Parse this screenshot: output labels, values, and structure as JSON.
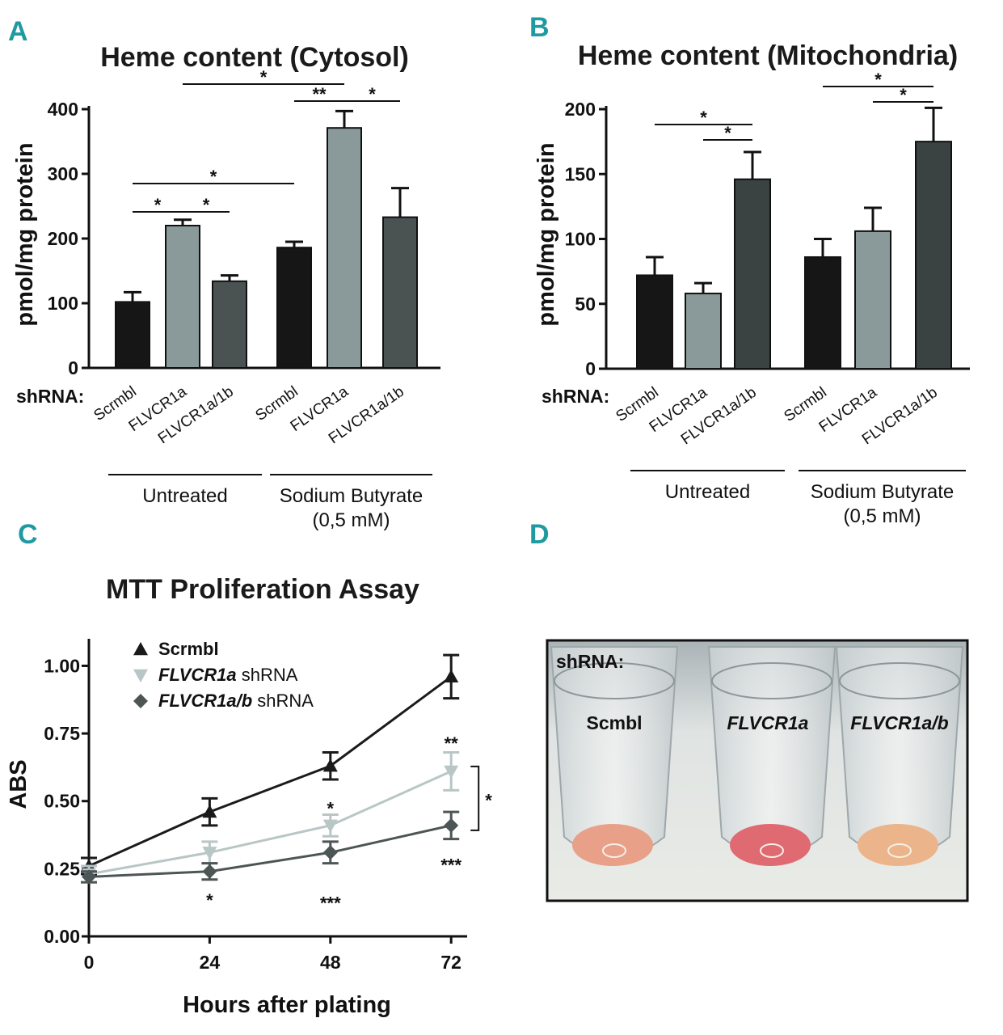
{
  "panel_labels": [
    "A",
    "B",
    "C",
    "D"
  ],
  "shrna_label": "shRNA:",
  "chart_data": [
    {
      "id": "A",
      "type": "bar",
      "title": "Heme content (Cytosol)",
      "ylabel": "pmol/mg protein",
      "ylim": [
        0,
        400
      ],
      "yticks": [
        0,
        100,
        200,
        300,
        400
      ],
      "categories": [
        "Scrmbl",
        "FLVCR1a",
        "FLVCR1a/1b",
        "Scrmbl",
        "FLVCR1a",
        "FLVCR1a/1b"
      ],
      "values": [
        102,
        220,
        134,
        186,
        371,
        233
      ],
      "errors": [
        15,
        9,
        9,
        9,
        26,
        45
      ],
      "bar_colors": [
        "#161616",
        "#8a9a9a",
        "#4a5252",
        "#161616",
        "#8a9a9a",
        "#4a5252"
      ],
      "groups": [
        {
          "label": "Untreated",
          "label2": "",
          "from": 0,
          "to": 2
        },
        {
          "label": "Sodium Butyrate",
          "label2": "(0,5 mM)",
          "from": 3,
          "to": 5
        }
      ],
      "significance": [
        {
          "from": 0,
          "to": 1,
          "label": "*"
        },
        {
          "from": 1,
          "to": 2,
          "label": "*"
        },
        {
          "from": 0,
          "to": 3,
          "label": "*"
        },
        {
          "from": 1,
          "to": 4,
          "label": "*"
        },
        {
          "from": 3,
          "to": 4,
          "label": "**"
        },
        {
          "from": 4,
          "to": 5,
          "label": "*"
        }
      ]
    },
    {
      "id": "B",
      "type": "bar",
      "title": "Heme content (Mitochondria)",
      "ylabel": "pmol/mg protein",
      "ylim": [
        0,
        200
      ],
      "yticks": [
        0,
        50,
        100,
        150,
        200
      ],
      "categories": [
        "Scrmbl",
        "FLVCR1a",
        "FLVCR1a/1b",
        "Scrmbl",
        "FLVCR1a",
        "FLVCR1a/1b"
      ],
      "values": [
        72,
        58,
        146,
        86,
        106,
        175
      ],
      "errors": [
        14,
        8,
        21,
        14,
        18,
        26
      ],
      "bar_colors": [
        "#161616",
        "#8a9a9a",
        "#3a4242",
        "#161616",
        "#8a9a9a",
        "#3a4242"
      ],
      "groups": [
        {
          "label": "Untreated",
          "label2": "",
          "from": 0,
          "to": 2
        },
        {
          "label": "Sodium Butyrate",
          "label2": "(0,5 mM)",
          "from": 3,
          "to": 5
        }
      ],
      "significance": [
        {
          "from": 0,
          "to": 2,
          "label": "*"
        },
        {
          "from": 1,
          "to": 2,
          "label": "*"
        },
        {
          "from": 3,
          "to": 5,
          "label": "*"
        },
        {
          "from": 4,
          "to": 5,
          "label": "*"
        }
      ]
    },
    {
      "id": "C",
      "type": "line",
      "title": "MTT Proliferation Assay",
      "xlabel": "Hours after plating",
      "ylabel": "ABS",
      "x": [
        0,
        24,
        48,
        72
      ],
      "xlim": [
        0,
        80
      ],
      "ylim": [
        0,
        1.1
      ],
      "xticks": [
        "0",
        "24",
        "48",
        "72"
      ],
      "yticks": [
        "0.00",
        "0.25",
        "0.50",
        "0.75",
        "1.00"
      ],
      "series": [
        {
          "name": "Scrmbl",
          "italic": "",
          "suffix": "",
          "marker": "triangle-up",
          "color": "#1a1a1a",
          "values": [
            0.26,
            0.46,
            0.63,
            0.96
          ],
          "errors": [
            0.03,
            0.05,
            0.05,
            0.08
          ]
        },
        {
          "name": "",
          "italic": "FLVCR1a",
          "suffix": " shRNA",
          "marker": "triangle-down",
          "color": "#b9c6c6",
          "values": [
            0.23,
            0.31,
            0.41,
            0.61
          ],
          "errors": [
            0.03,
            0.04,
            0.04,
            0.07
          ]
        },
        {
          "name": "",
          "italic": "FLVCR1a/b",
          "suffix": " shRNA",
          "marker": "diamond",
          "color": "#4d5555",
          "values": [
            0.22,
            0.24,
            0.31,
            0.41
          ],
          "errors": [
            0.02,
            0.03,
            0.04,
            0.05
          ]
        }
      ],
      "annotations": [
        {
          "x": 24,
          "y": 0.14,
          "label": "*"
        },
        {
          "x": 48,
          "y": 0.13,
          "label": "***"
        },
        {
          "x": 48,
          "y": 0.48,
          "label": "*"
        },
        {
          "x": 72,
          "y": 0.72,
          "label": "**"
        },
        {
          "x": 72,
          "y": 0.27,
          "label": "***"
        }
      ],
      "bracket": {
        "label": "*"
      }
    }
  ],
  "photo": {
    "shrna_label": "shRNA:",
    "tube_labels": [
      "Scmbl",
      "FLVCR1a",
      "FLVCR1a/b"
    ],
    "pellet_colors": [
      "#e8a089",
      "#e06a72",
      "#ecb48a"
    ]
  }
}
